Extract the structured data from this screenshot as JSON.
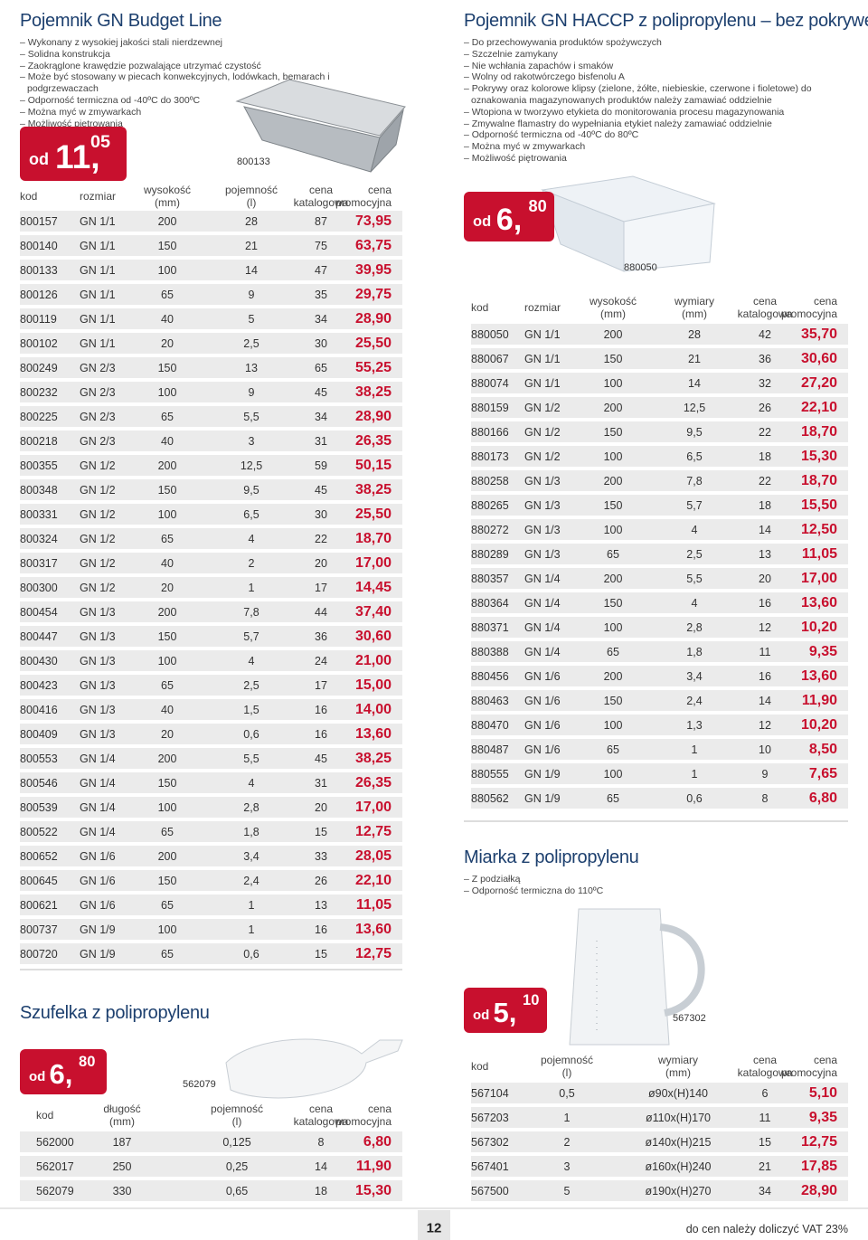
{
  "sections": [
    {
      "title": "Pojemnik GN Budget Line",
      "bullets": [
        "– Wykonany z wysokiej jakości stali nierdzewnej",
        "– Solidna konstrukcja",
        "– Zaokrąglone krawędzie pozwalające utrzymać czystość",
        "– Może być stosowany w piecach konwekcyjnych, lodówkach, bemarach i podgrzewaczach",
        "– Odporność termiczna od -40ºC do 300ºC",
        "– Można myć w zmywarkach",
        "– Możliwość piętrowania"
      ],
      "price": {
        "prefix": "od",
        "main": "11,",
        "fraction": "05"
      },
      "image_label": "800133",
      "table": {
        "headers": [
          [
            "kod"
          ],
          [
            "rozmiar"
          ],
          [
            "wysokość",
            "(mm)"
          ],
          [
            "pojemność",
            "(l)"
          ],
          [
            "cena",
            "katalogowa"
          ],
          [
            "cena",
            "promocyjna"
          ]
        ],
        "rows": [
          [
            "800157",
            "GN 1/1",
            "200",
            "28",
            "87",
            "73,95"
          ],
          [
            "800140",
            "GN 1/1",
            "150",
            "21",
            "75",
            "63,75"
          ],
          [
            "800133",
            "GN 1/1",
            "100",
            "14",
            "47",
            "39,95"
          ],
          [
            "800126",
            "GN 1/1",
            "65",
            "9",
            "35",
            "29,75"
          ],
          [
            "800119",
            "GN 1/1",
            "40",
            "5",
            "34",
            "28,90"
          ],
          [
            "800102",
            "GN 1/1",
            "20",
            "2,5",
            "30",
            "25,50"
          ],
          [
            "800249",
            "GN 2/3",
            "150",
            "13",
            "65",
            "55,25"
          ],
          [
            "800232",
            "GN 2/3",
            "100",
            "9",
            "45",
            "38,25"
          ],
          [
            "800225",
            "GN 2/3",
            "65",
            "5,5",
            "34",
            "28,90"
          ],
          [
            "800218",
            "GN 2/3",
            "40",
            "3",
            "31",
            "26,35"
          ],
          [
            "800355",
            "GN 1/2",
            "200",
            "12,5",
            "59",
            "50,15"
          ],
          [
            "800348",
            "GN 1/2",
            "150",
            "9,5",
            "45",
            "38,25"
          ],
          [
            "800331",
            "GN 1/2",
            "100",
            "6,5",
            "30",
            "25,50"
          ],
          [
            "800324",
            "GN 1/2",
            "65",
            "4",
            "22",
            "18,70"
          ],
          [
            "800317",
            "GN 1/2",
            "40",
            "2",
            "20",
            "17,00"
          ],
          [
            "800300",
            "GN 1/2",
            "20",
            "1",
            "17",
            "14,45"
          ],
          [
            "800454",
            "GN 1/3",
            "200",
            "7,8",
            "44",
            "37,40"
          ],
          [
            "800447",
            "GN 1/3",
            "150",
            "5,7",
            "36",
            "30,60"
          ],
          [
            "800430",
            "GN 1/3",
            "100",
            "4",
            "24",
            "21,00"
          ],
          [
            "800423",
            "GN 1/3",
            "65",
            "2,5",
            "17",
            "15,00"
          ],
          [
            "800416",
            "GN 1/3",
            "40",
            "1,5",
            "16",
            "14,00"
          ],
          [
            "800409",
            "GN 1/3",
            "20",
            "0,6",
            "16",
            "13,60"
          ],
          [
            "800553",
            "GN 1/4",
            "200",
            "5,5",
            "45",
            "38,25"
          ],
          [
            "800546",
            "GN 1/4",
            "150",
            "4",
            "31",
            "26,35"
          ],
          [
            "800539",
            "GN 1/4",
            "100",
            "2,8",
            "20",
            "17,00"
          ],
          [
            "800522",
            "GN 1/4",
            "65",
            "1,8",
            "15",
            "12,75"
          ],
          [
            "800652",
            "GN 1/6",
            "200",
            "3,4",
            "33",
            "28,05"
          ],
          [
            "800645",
            "GN 1/6",
            "150",
            "2,4",
            "26",
            "22,10"
          ],
          [
            "800621",
            "GN 1/6",
            "65",
            "1",
            "13",
            "11,05"
          ],
          [
            "800737",
            "GN 1/9",
            "100",
            "1",
            "16",
            "13,60"
          ],
          [
            "800720",
            "GN 1/9",
            "65",
            "0,6",
            "15",
            "12,75"
          ]
        ]
      }
    },
    {
      "title": "Pojemnik GN HACCP z polipropylenu – bez pokrywek",
      "bullets": [
        "– Do przechowywania produktów spożywczych",
        "– Szczelnie zamykany",
        "– Nie wchłania zapachów i smaków",
        "– Wolny od rakotwórczego bisfenolu A",
        "– Pokrywy oraz kolorowe klipsy (zielone, żółte, niebieskie, czerwone i fioletowe) do oznakowania magazynowanych produktów należy zamawiać oddzielnie",
        "– Wtopiona w tworzywo etykieta do monitorowania procesu magazynowania",
        "– Zmywalne flamastry do wypełniania etykiet należy zamawiać oddzielnie",
        "– Odporność termiczna od -40ºC do 80ºC",
        "– Można myć w zmywarkach",
        "– Możliwość piętrowania"
      ],
      "price": {
        "prefix": "od",
        "main": "6,",
        "fraction": "80"
      },
      "image_label": "880050",
      "table": {
        "headers": [
          [
            "kod"
          ],
          [
            "rozmiar"
          ],
          [
            "wysokość",
            "(mm)"
          ],
          [
            "wymiary",
            "(mm)"
          ],
          [
            "cena",
            "katalogowa"
          ],
          [
            "cena",
            "promocyjna"
          ]
        ],
        "rows": [
          [
            "880050",
            "GN 1/1",
            "200",
            "28",
            "42",
            "35,70"
          ],
          [
            "880067",
            "GN 1/1",
            "150",
            "21",
            "36",
            "30,60"
          ],
          [
            "880074",
            "GN 1/1",
            "100",
            "14",
            "32",
            "27,20"
          ],
          [
            "880159",
            "GN 1/2",
            "200",
            "12,5",
            "26",
            "22,10"
          ],
          [
            "880166",
            "GN 1/2",
            "150",
            "9,5",
            "22",
            "18,70"
          ],
          [
            "880173",
            "GN 1/2",
            "100",
            "6,5",
            "18",
            "15,30"
          ],
          [
            "880258",
            "GN 1/3",
            "200",
            "7,8",
            "22",
            "18,70"
          ],
          [
            "880265",
            "GN 1/3",
            "150",
            "5,7",
            "18",
            "15,50"
          ],
          [
            "880272",
            "GN 1/3",
            "100",
            "4",
            "14",
            "12,50"
          ],
          [
            "880289",
            "GN 1/3",
            "65",
            "2,5",
            "13",
            "11,05"
          ],
          [
            "880357",
            "GN 1/4",
            "200",
            "5,5",
            "20",
            "17,00"
          ],
          [
            "880364",
            "GN 1/4",
            "150",
            "4",
            "16",
            "13,60"
          ],
          [
            "880371",
            "GN 1/4",
            "100",
            "2,8",
            "12",
            "10,20"
          ],
          [
            "880388",
            "GN 1/4",
            "65",
            "1,8",
            "11",
            "9,35"
          ],
          [
            "880456",
            "GN 1/6",
            "200",
            "3,4",
            "16",
            "13,60"
          ],
          [
            "880463",
            "GN 1/6",
            "150",
            "2,4",
            "14",
            "11,90"
          ],
          [
            "880470",
            "GN 1/6",
            "100",
            "1,3",
            "12",
            "10,20"
          ],
          [
            "880487",
            "GN 1/6",
            "65",
            "1",
            "10",
            "8,50"
          ],
          [
            "880555",
            "GN 1/9",
            "100",
            "1",
            "9",
            "7,65"
          ],
          [
            "880562",
            "GN 1/9",
            "65",
            "0,6",
            "8",
            "6,80"
          ]
        ]
      }
    },
    {
      "title": "Miarka z polipropylenu",
      "bullets": [
        "– Z podziałką",
        "– Odporność termiczna do 110ºC"
      ],
      "price": {
        "prefix": "od",
        "main": "5,",
        "fraction": "10"
      },
      "image_label": "567302",
      "table": {
        "headers": [
          [
            "kod"
          ],
          [
            "pojemność",
            "(l)"
          ],
          [
            "wymiary",
            "(mm)"
          ],
          [
            "cena",
            "katalogowa"
          ],
          [
            "cena",
            "promocyjna"
          ]
        ],
        "rows": [
          [
            "567104",
            "0,5",
            "ø90x(H)140",
            "6",
            "5,10"
          ],
          [
            "567203",
            "1",
            "ø110x(H)170",
            "11",
            "9,35"
          ],
          [
            "567302",
            "2",
            "ø140x(H)215",
            "15",
            "12,75"
          ],
          [
            "567401",
            "3",
            "ø160x(H)240",
            "21",
            "17,85"
          ],
          [
            "567500",
            "5",
            "ø190x(H)270",
            "34",
            "28,90"
          ]
        ]
      }
    },
    {
      "title": "Szufelka z polipropylenu",
      "bullets": [],
      "price": {
        "prefix": "od",
        "main": "6,",
        "fraction": "80"
      },
      "image_label": "562079",
      "table": {
        "headers": [
          [
            "kod"
          ],
          [
            "długość",
            "(mm)"
          ],
          [
            "pojemność",
            "(l)"
          ],
          [
            "cena",
            "katalogowa"
          ],
          [
            "cena",
            "promocyjna"
          ]
        ],
        "rows": [
          [
            "562000",
            "187",
            "0,125",
            "8",
            "6,80"
          ],
          [
            "562017",
            "250",
            "0,25",
            "14",
            "11,90"
          ],
          [
            "562079",
            "330",
            "0,65",
            "18",
            "15,30"
          ]
        ]
      }
    }
  ],
  "footer": {
    "page_number": "12",
    "note": "do cen należy doliczyć VAT 23%"
  }
}
